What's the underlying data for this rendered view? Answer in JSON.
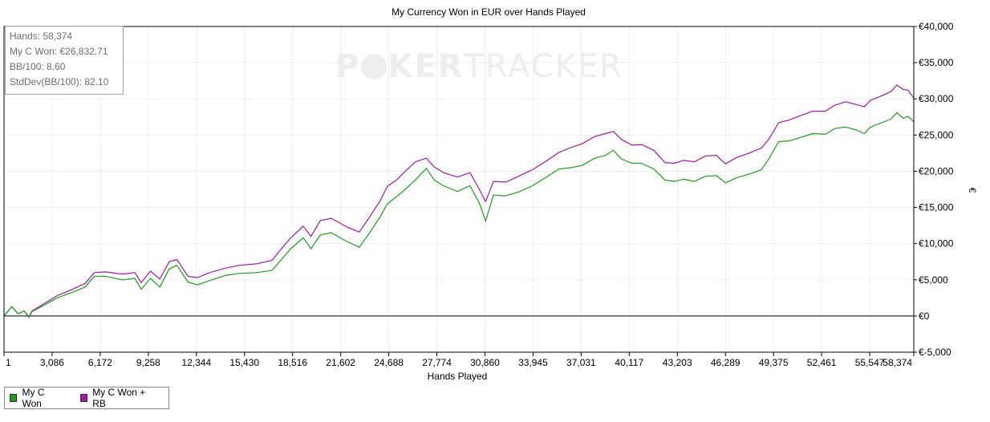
{
  "chart_data": {
    "type": "line",
    "title": "My Currency Won in EUR over Hands Played",
    "xlabel": "Hands Played",
    "ylabel": "€",
    "xlim": [
      1,
      58374
    ],
    "ylim": [
      -5000,
      40000
    ],
    "x_ticks": [
      "1",
      "3,086",
      "6,172",
      "9,258",
      "12,344",
      "15,430",
      "18,516",
      "21,602",
      "24,688",
      "27,774",
      "30,860",
      "33,945",
      "37,031",
      "40,117",
      "43,203",
      "46,289",
      "49,375",
      "52,461",
      "55,547",
      "58,374"
    ],
    "y_ticks": [
      "€-5,000",
      "€0",
      "€5,000",
      "€10,000",
      "€15,000",
      "€20,000",
      "€25,000",
      "€30,000",
      "€35,000",
      "€40,000"
    ],
    "y_tick_values": [
      -5000,
      0,
      5000,
      10000,
      15000,
      20000,
      25000,
      30000,
      35000,
      40000
    ],
    "grid": true,
    "legend_position": "bottom-left",
    "series": [
      {
        "name": "My C Won",
        "color": "#1f9b1f",
        "x": [
          1,
          500,
          900,
          1300,
          1600,
          1800,
          2500,
          3400,
          4300,
          5200,
          5800,
          6500,
          7600,
          8400,
          8800,
          9400,
          10000,
          10600,
          11100,
          11800,
          12400,
          13200,
          14200,
          15100,
          16200,
          17200,
          17800,
          18400,
          19200,
          19700,
          20300,
          21000,
          22000,
          22800,
          23400,
          24100,
          24600,
          25200,
          25700,
          26400,
          27100,
          27600,
          28200,
          29100,
          29900,
          30500,
          30900,
          31400,
          32200,
          33100,
          33900,
          34800,
          35600,
          36400,
          37100,
          37900,
          38600,
          39100,
          39600,
          40300,
          40900,
          41700,
          42400,
          43000,
          43600,
          44300,
          45000,
          45700,
          46300,
          47000,
          47800,
          48600,
          49100,
          49700,
          50400,
          51000,
          51900,
          52700,
          53300,
          54000,
          54700,
          55200,
          55600,
          56300,
          56900,
          57300,
          57700,
          58000,
          58374
        ],
        "values": [
          0,
          1300,
          300,
          700,
          -200,
          600,
          1400,
          2500,
          3200,
          4000,
          5500,
          5500,
          5000,
          5200,
          3700,
          5200,
          4000,
          6500,
          7000,
          4700,
          4300,
          4900,
          5600,
          5900,
          6000,
          6300,
          7800,
          9300,
          10800,
          9300,
          11200,
          11500,
          10300,
          9500,
          11300,
          13600,
          15500,
          16500,
          17400,
          18800,
          20400,
          18800,
          18000,
          17200,
          18000,
          15600,
          13100,
          16700,
          16600,
          17200,
          18000,
          19200,
          20300,
          20500,
          20800,
          21800,
          22200,
          22900,
          21700,
          21100,
          21100,
          20300,
          18800,
          18600,
          18900,
          18600,
          19300,
          19400,
          18400,
          19100,
          19600,
          20200,
          21800,
          24100,
          24200,
          24600,
          25200,
          25100,
          25900,
          26100,
          25700,
          25200,
          26100,
          26700,
          27200,
          28100,
          27300,
          27600,
          26832.71
        ]
      },
      {
        "name": "My C Won + RB",
        "color": "#a01aa0",
        "x": [
          1,
          500,
          900,
          1300,
          1600,
          1800,
          2500,
          3400,
          4300,
          5200,
          5800,
          6500,
          7600,
          8400,
          8800,
          9400,
          10000,
          10600,
          11100,
          11800,
          12400,
          13200,
          14200,
          15100,
          16200,
          17200,
          17800,
          18400,
          19200,
          19700,
          20300,
          21000,
          22000,
          22800,
          23400,
          24100,
          24600,
          25200,
          25700,
          26400,
          27100,
          27600,
          28200,
          29100,
          29900,
          30500,
          30900,
          31400,
          32200,
          33100,
          33900,
          34800,
          35600,
          36400,
          37100,
          37900,
          38600,
          39100,
          39600,
          40300,
          40900,
          41700,
          42400,
          43000,
          43600,
          44300,
          45000,
          45700,
          46300,
          47000,
          47800,
          48600,
          49100,
          49700,
          50400,
          51000,
          51900,
          52700,
          53300,
          54000,
          54700,
          55200,
          55600,
          56300,
          56900,
          57300,
          57700,
          58000,
          58374
        ],
        "values": [
          0,
          1300,
          300,
          700,
          -100,
          700,
          1600,
          2800,
          3600,
          4500,
          6000,
          6100,
          5800,
          6000,
          4600,
          6200,
          5100,
          7500,
          7800,
          5500,
          5300,
          6000,
          6600,
          7000,
          7200,
          7700,
          9300,
          10800,
          12400,
          11000,
          13200,
          13500,
          12300,
          11600,
          13500,
          15800,
          17900,
          18800,
          19900,
          21300,
          21800,
          20600,
          19800,
          19200,
          19800,
          17500,
          15800,
          18600,
          18500,
          19400,
          20200,
          21400,
          22600,
          23300,
          23800,
          24800,
          25200,
          25500,
          24400,
          23600,
          23700,
          22900,
          21200,
          21100,
          21500,
          21300,
          22100,
          22200,
          21000,
          21900,
          22500,
          23200,
          24500,
          26700,
          27100,
          27600,
          28300,
          28300,
          29100,
          29600,
          29200,
          28900,
          29800,
          30400,
          31000,
          31900,
          31300,
          31200,
          30100
        ]
      }
    ]
  },
  "stats": {
    "hands": "Hands: 58,374",
    "won": "My C Won: €26,832.71",
    "bb100": "BB/100: 8.60",
    "stddev": "StdDev(BB/100): 82.10"
  },
  "watermark": {
    "part1": "P",
    "part2": "KER",
    "part3": "TRACKER"
  },
  "legend": {
    "items": [
      {
        "label": "My C Won",
        "color": "#1f9b1f"
      },
      {
        "label": "My C Won + RB",
        "color": "#a01aa0"
      }
    ]
  }
}
